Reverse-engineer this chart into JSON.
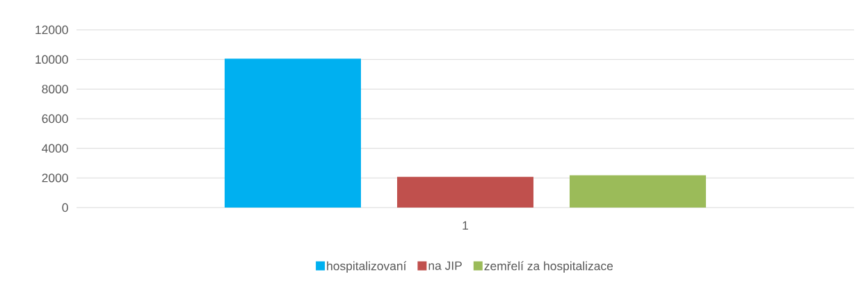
{
  "chart_data": {
    "type": "bar",
    "categories": [
      "1"
    ],
    "series": [
      {
        "name": "hospitalizovaní",
        "color": "#00b0f0",
        "values": [
          10050
        ]
      },
      {
        "name": "na JIP",
        "color": "#c0504d",
        "values": [
          2070
        ]
      },
      {
        "name": "zemřelí za hospitalizace",
        "color": "#9bbb59",
        "values": [
          2180
        ]
      }
    ],
    "ylim": [
      0,
      12000
    ],
    "yticks": [
      0,
      2000,
      4000,
      6000,
      8000,
      10000,
      12000
    ],
    "grid": "y",
    "legend": "bottom"
  }
}
